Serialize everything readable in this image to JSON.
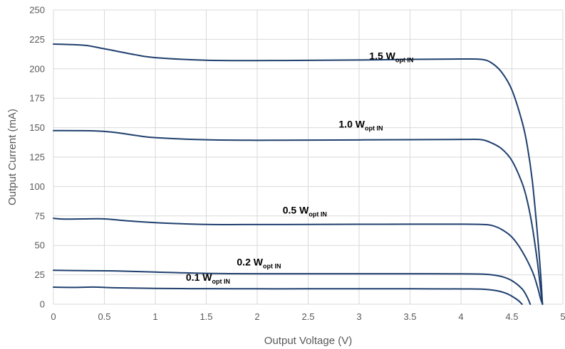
{
  "chart_data": {
    "type": "line",
    "title": "",
    "xlabel": "Output Voltage (V)",
    "ylabel": "Output Current (mA)",
    "xlim": [
      0,
      5
    ],
    "ylim": [
      0,
      250
    ],
    "xticks": [
      "0",
      "0.5",
      "1",
      "1.5",
      "2",
      "2.5",
      "3",
      "3.5",
      "4",
      "4.5",
      "5"
    ],
    "yticks": [
      "0",
      "25",
      "50",
      "75",
      "100",
      "125",
      "150",
      "175",
      "200",
      "225",
      "250"
    ],
    "grid": true,
    "legend": "none",
    "line_color": "#1f3f6e",
    "series": [
      {
        "label_main": "1.5 W",
        "label_sub": "opt IN",
        "label_at": [
          3.1,
          208
        ],
        "points": [
          [
            0,
            221
          ],
          [
            0.3,
            220
          ],
          [
            0.5,
            217
          ],
          [
            0.8,
            212
          ],
          [
            1,
            209.5
          ],
          [
            1.5,
            207.3
          ],
          [
            2,
            207
          ],
          [
            2.5,
            207.2
          ],
          [
            3,
            207.5
          ],
          [
            3.5,
            208
          ],
          [
            4,
            208.3
          ],
          [
            4.2,
            208
          ],
          [
            4.3,
            205
          ],
          [
            4.4,
            197
          ],
          [
            4.5,
            182
          ],
          [
            4.6,
            155
          ],
          [
            4.65,
            135
          ],
          [
            4.7,
            105
          ],
          [
            4.75,
            60
          ],
          [
            4.78,
            28
          ],
          [
            4.8,
            0
          ]
        ]
      },
      {
        "label_main": "1.0 W",
        "label_sub": "opt IN",
        "label_at": [
          2.8,
          150
        ],
        "points": [
          [
            0,
            147.5
          ],
          [
            0.4,
            147.3
          ],
          [
            0.6,
            146
          ],
          [
            0.8,
            143.5
          ],
          [
            1,
            141.5
          ],
          [
            1.5,
            139.7
          ],
          [
            2,
            139.3
          ],
          [
            2.5,
            139.4
          ],
          [
            3,
            139.6
          ],
          [
            3.5,
            139.8
          ],
          [
            4,
            140
          ],
          [
            4.2,
            139.8
          ],
          [
            4.3,
            137
          ],
          [
            4.4,
            132
          ],
          [
            4.5,
            122
          ],
          [
            4.6,
            103
          ],
          [
            4.65,
            88
          ],
          [
            4.7,
            66
          ],
          [
            4.75,
            36
          ],
          [
            4.78,
            14
          ],
          [
            4.8,
            0
          ]
        ]
      },
      {
        "label_main": "0.5 W",
        "label_sub": "opt IN",
        "label_at": [
          2.25,
          77
        ],
        "points": [
          [
            0,
            73
          ],
          [
            0.1,
            72.3
          ],
          [
            0.3,
            72.5
          ],
          [
            0.5,
            72.5
          ],
          [
            0.7,
            71
          ],
          [
            1,
            69.3
          ],
          [
            1.5,
            67.8
          ],
          [
            2,
            67.7
          ],
          [
            2.5,
            67.8
          ],
          [
            3,
            67.9
          ],
          [
            3.5,
            68
          ],
          [
            4,
            68
          ],
          [
            4.2,
            67.8
          ],
          [
            4.3,
            67
          ],
          [
            4.4,
            63.5
          ],
          [
            4.5,
            57
          ],
          [
            4.6,
            45
          ],
          [
            4.7,
            28
          ],
          [
            4.75,
            15
          ],
          [
            4.78,
            5
          ],
          [
            4.8,
            0
          ]
        ]
      },
      {
        "label_main": "0.2 W",
        "label_sub": "opt IN",
        "label_at": [
          1.8,
          33
        ],
        "points": [
          [
            0,
            28.8
          ],
          [
            0.3,
            28.5
          ],
          [
            0.6,
            28.3
          ],
          [
            1,
            27.3
          ],
          [
            1.5,
            26.2
          ],
          [
            2,
            25.9
          ],
          [
            2.5,
            25.9
          ],
          [
            3,
            25.9
          ],
          [
            3.5,
            25.9
          ],
          [
            4,
            25.8
          ],
          [
            4.2,
            25.6
          ],
          [
            4.3,
            25
          ],
          [
            4.4,
            23.5
          ],
          [
            4.5,
            20
          ],
          [
            4.6,
            13
          ],
          [
            4.65,
            6
          ],
          [
            4.68,
            0
          ]
        ]
      },
      {
        "label_main": "0.1 W",
        "label_sub": "opt IN",
        "label_at": [
          1.3,
          20
        ],
        "points": [
          [
            0,
            14.5
          ],
          [
            0.2,
            14.3
          ],
          [
            0.4,
            14.6
          ],
          [
            0.6,
            14
          ],
          [
            1,
            13.4
          ],
          [
            1.5,
            13.2
          ],
          [
            2,
            13.1
          ],
          [
            2.5,
            13.1
          ],
          [
            3,
            13.1
          ],
          [
            3.5,
            13.1
          ],
          [
            4,
            13
          ],
          [
            4.2,
            12.8
          ],
          [
            4.35,
            11.5
          ],
          [
            4.45,
            9
          ],
          [
            4.55,
            4
          ],
          [
            4.6,
            0
          ]
        ]
      }
    ]
  }
}
